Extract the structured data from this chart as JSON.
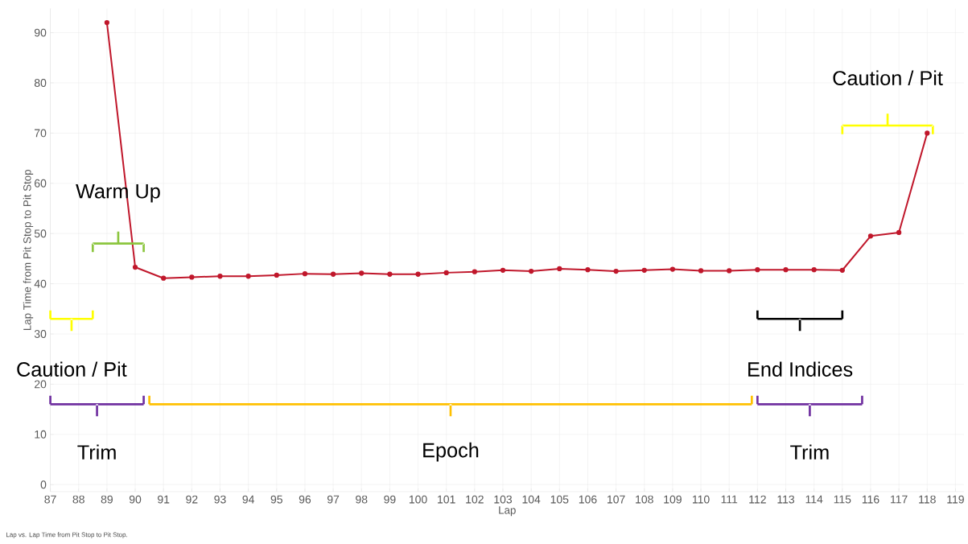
{
  "chart_data": {
    "type": "line",
    "xlabel": "Lap",
    "ylabel": "Lap Time from Pit Stop to Pit Stop",
    "x": [
      89,
      90,
      91,
      92,
      93,
      94,
      95,
      96,
      97,
      98,
      99,
      100,
      101,
      102,
      103,
      104,
      105,
      106,
      107,
      108,
      109,
      110,
      111,
      112,
      113,
      114,
      115,
      116,
      117,
      118
    ],
    "series": [
      {
        "color": "#c0172b",
        "values": [
          92.0,
          43.3,
          41.1,
          41.3,
          41.5,
          41.5,
          41.7,
          42.0,
          41.9,
          42.1,
          41.9,
          41.9,
          42.2,
          42.4,
          42.7,
          42.5,
          43.0,
          42.8,
          42.5,
          42.7,
          42.9,
          42.6,
          42.6,
          42.8,
          42.8,
          42.8,
          42.7,
          49.5,
          50.2,
          70.0
        ]
      }
    ],
    "xlim": [
      87,
      119.3
    ],
    "ylim": [
      -1.4,
      94.8
    ],
    "xticks": [
      87,
      88,
      89,
      90,
      91,
      92,
      93,
      94,
      95,
      96,
      97,
      98,
      99,
      100,
      101,
      102,
      103,
      104,
      105,
      106,
      107,
      108,
      109,
      110,
      111,
      112,
      113,
      114,
      115,
      116,
      117,
      118,
      119
    ],
    "yticks": [
      0,
      10,
      20,
      30,
      40,
      50,
      60,
      70,
      80,
      90
    ],
    "grid": true,
    "marker": "circle",
    "line_style": "solid",
    "annotations": [
      "Caution / Pit",
      "Warm Up",
      "Trim",
      "Epoch",
      "End Indices",
      "Trim",
      "Caution / Pit",
      "Lap vs. Lap Time from Pit Stop to Pit Stop."
    ]
  }
}
